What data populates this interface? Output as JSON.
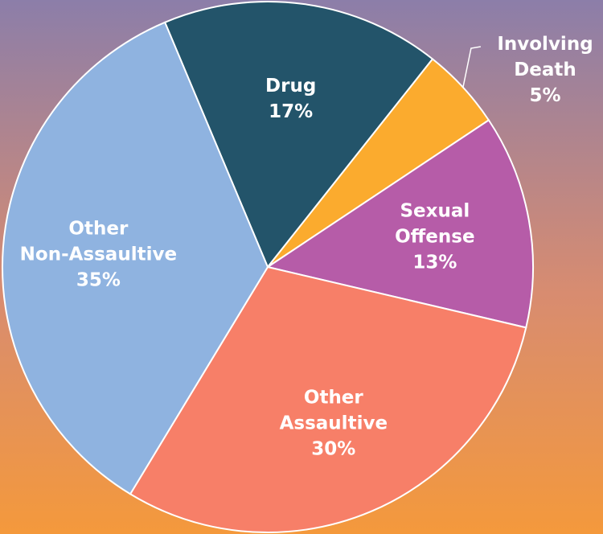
{
  "chart_data": {
    "type": "pie",
    "categories": [
      "Drug",
      "Involving Death",
      "Sexual Offense",
      "Other Assaultive",
      "Other Non-Assaultive"
    ],
    "values": [
      17,
      5,
      13,
      30,
      35
    ],
    "value_labels": [
      "17%",
      "5%",
      "13%",
      "30%",
      "35%"
    ],
    "colors": [
      "#23546a",
      "#fbab2e",
      "#b65ca8",
      "#f77f68",
      "#8fb3e0"
    ]
  }
}
